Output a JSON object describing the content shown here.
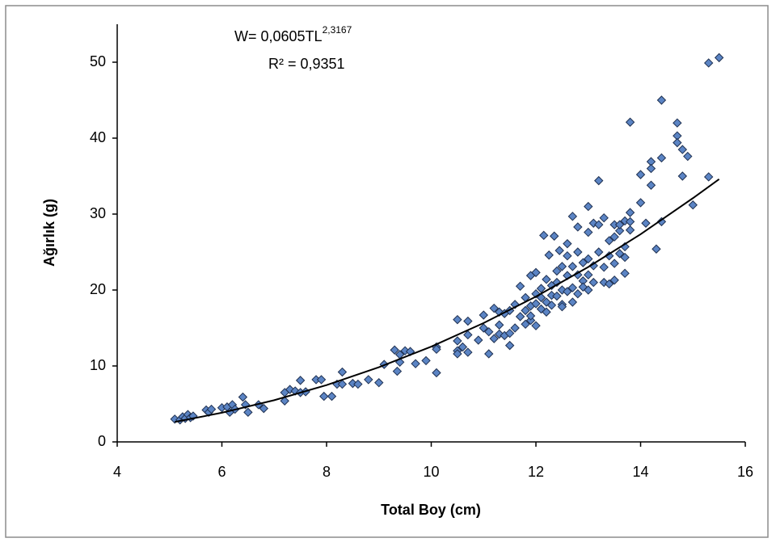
{
  "chart_data": {
    "type": "scatter",
    "annotations": {
      "equation": "W= 0,0605TL",
      "exponent": "2,3167",
      "r2": "R² = 0,9351"
    },
    "xlabel": "Total Boy (cm)",
    "ylabel": "Ağırlık (g)",
    "xlim": [
      4,
      16
    ],
    "xticks": [
      4,
      6,
      8,
      10,
      12,
      14,
      16
    ],
    "ylim": [
      0,
      55
    ],
    "yticks": [
      0,
      10,
      20,
      30,
      40,
      50
    ],
    "color": "#5b84c4",
    "x": [
      5.1,
      5.2,
      5.25,
      5.3,
      5.35,
      5.4,
      5.45,
      5.7,
      5.75,
      5.8,
      6.0,
      6.1,
      6.15,
      6.2,
      6.25,
      6.4,
      6.45,
      6.5,
      6.7,
      6.8,
      7.2,
      7.2,
      7.3,
      7.4,
      7.5,
      7.5,
      7.6,
      7.8,
      7.9,
      7.95,
      8.1,
      8.2,
      8.3,
      8.3,
      8.5,
      8.6,
      8.8,
      9.0,
      9.1,
      9.3,
      9.35,
      9.4,
      9.4,
      9.5,
      9.6,
      9.7,
      9.9,
      10.1,
      10.1,
      10.1,
      10.5,
      10.5,
      10.5,
      10.5,
      10.6,
      10.7,
      10.7,
      10.7,
      10.9,
      11.0,
      11.0,
      11.1,
      11.1,
      11.2,
      11.2,
      11.3,
      11.3,
      11.3,
      11.4,
      11.4,
      11.5,
      11.5,
      11.5,
      11.6,
      11.6,
      11.7,
      11.7,
      11.8,
      11.8,
      11.8,
      11.9,
      11.9,
      11.9,
      11.9,
      12.0,
      12.0,
      12.0,
      12.0,
      12.1,
      12.1,
      12.1,
      12.15,
      12.2,
      12.2,
      12.2,
      12.25,
      12.3,
      12.3,
      12.3,
      12.35,
      12.4,
      12.4,
      12.4,
      12.45,
      12.5,
      12.5,
      12.5,
      12.5,
      12.6,
      12.6,
      12.6,
      12.6,
      12.7,
      12.7,
      12.7,
      12.7,
      12.8,
      12.8,
      12.8,
      12.8,
      12.9,
      12.9,
      12.9,
      13.0,
      13.0,
      13.0,
      13.0,
      13.0,
      13.1,
      13.1,
      13.1,
      13.2,
      13.2,
      13.2,
      13.3,
      13.3,
      13.3,
      13.4,
      13.4,
      13.4,
      13.5,
      13.5,
      13.5,
      13.5,
      13.6,
      13.6,
      13.6,
      13.7,
      13.7,
      13.7,
      13.7,
      13.8,
      13.8,
      13.8,
      13.8,
      14.0,
      14.0,
      14.1,
      14.2,
      14.2,
      14.2,
      14.3,
      14.4,
      14.4,
      14.4,
      14.7,
      14.7,
      14.7,
      14.8,
      14.8,
      14.9,
      15.0,
      15.3,
      15.3,
      15.5
    ],
    "values": [
      3.0,
      2.9,
      3.3,
      3.1,
      3.6,
      3.2,
      3.4,
      4.2,
      3.9,
      4.3,
      4.5,
      4.6,
      3.9,
      4.9,
      4.3,
      5.9,
      4.9,
      3.9,
      4.9,
      4.4,
      5.4,
      6.5,
      6.9,
      6.7,
      8.1,
      6.5,
      6.6,
      8.2,
      8.2,
      6.0,
      6.0,
      7.6,
      9.2,
      7.6,
      7.7,
      7.6,
      8.2,
      7.8,
      10.2,
      12.1,
      9.3,
      10.5,
      11.5,
      12.0,
      11.9,
      10.3,
      10.7,
      12.5,
      9.1,
      12.2,
      16.1,
      13.3,
      12.0,
      11.6,
      12.5,
      15.9,
      14.1,
      11.8,
      13.4,
      16.7,
      15.0,
      14.5,
      11.6,
      17.6,
      13.6,
      17.1,
      15.4,
      14.2,
      16.9,
      14.0,
      17.3,
      14.3,
      12.7,
      15.0,
      18.1,
      16.5,
      20.5,
      19.0,
      17.3,
      15.5,
      21.9,
      17.9,
      16.0,
      16.6,
      19.5,
      18.2,
      15.3,
      22.3,
      20.2,
      17.5,
      19.0,
      27.2,
      21.4,
      18.4,
      17.1,
      24.6,
      20.6,
      19.3,
      18.0,
      27.1,
      22.5,
      21.0,
      19.2,
      25.2,
      23.1,
      20.0,
      18.1,
      17.8,
      26.1,
      21.9,
      19.8,
      24.5,
      29.7,
      23.1,
      20.3,
      18.4,
      28.3,
      22.0,
      19.5,
      25.0,
      21.2,
      23.6,
      20.4,
      31.0,
      27.6,
      24.1,
      20.0,
      22.0,
      28.8,
      23.2,
      21.0,
      34.4,
      28.6,
      25.0,
      29.5,
      23.0,
      21.0,
      26.5,
      20.8,
      24.5,
      28.6,
      27.0,
      23.5,
      21.3,
      27.8,
      24.8,
      28.6,
      29.1,
      24.3,
      22.2,
      25.7,
      42.1,
      29.0,
      27.9,
      30.2,
      35.2,
      31.5,
      28.8,
      36.9,
      33.8,
      36.0,
      25.4,
      45.0,
      37.4,
      29.0,
      42.0,
      40.3,
      39.4,
      38.5,
      35.0,
      37.6,
      31.2,
      49.9,
      34.9,
      50.6
    ],
    "trendline": {
      "color": "#000000",
      "x": [
        5.1,
        6,
        7,
        8,
        9,
        10,
        11,
        12,
        13,
        14,
        15,
        15.5
      ],
      "values": [
        2.63,
        3.84,
        5.49,
        7.48,
        9.83,
        12.55,
        15.65,
        19.14,
        23.03,
        27.35,
        32.1,
        34.6
      ]
    }
  }
}
